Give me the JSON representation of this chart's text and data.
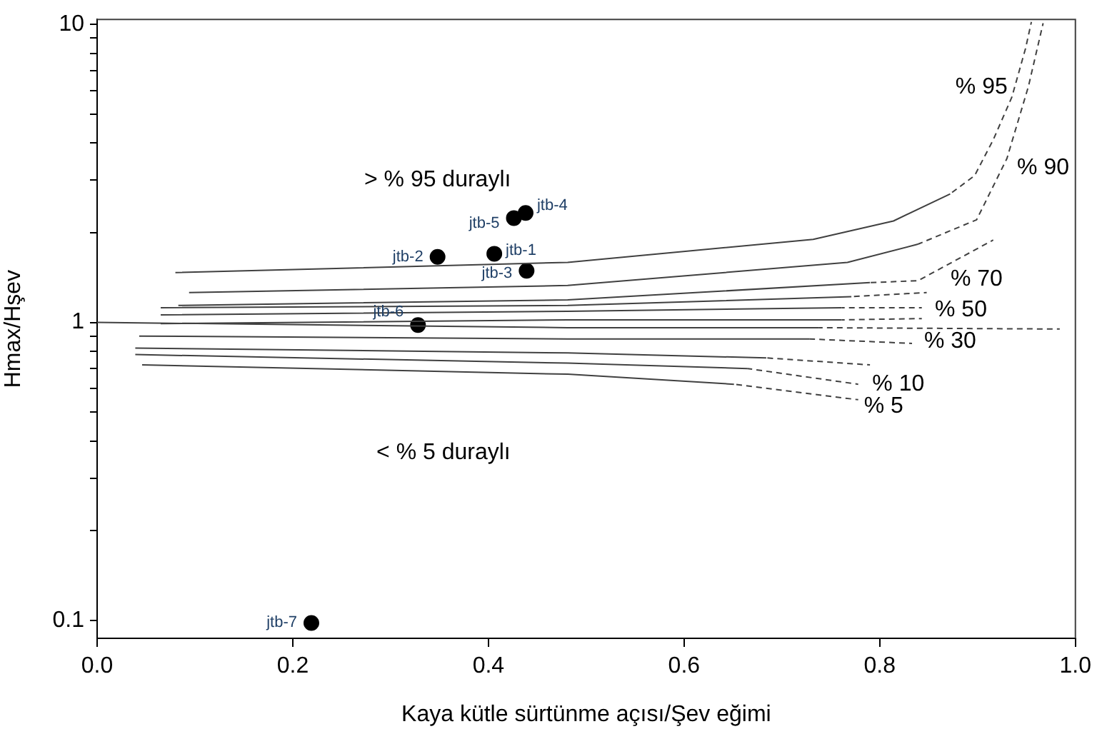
{
  "chart_data": {
    "type": "scatter",
    "xlabel": "Kaya kütle sürtünme açısı/Şev eğimi",
    "ylabel": "Hmax/Hşev",
    "log": "y",
    "grid": false,
    "legend": false,
    "xlim": [
      0,
      1
    ],
    "xticks": [
      {
        "value": 0,
        "label": "0.0"
      },
      0.2,
      0.4,
      0.6,
      0.8,
      {
        "value": 1,
        "label": "1.0"
      }
    ],
    "ylim": [
      0.087,
      10.4
    ],
    "yticks": [
      0.1,
      {
        "value": 0.2,
        "label": null
      },
      {
        "value": 0.3,
        "label": null
      },
      {
        "value": 0.4,
        "label": null
      },
      {
        "value": 0.5,
        "label": null
      },
      {
        "value": 0.6,
        "label": null
      },
      {
        "value": 0.7,
        "label": null
      },
      {
        "value": 0.8,
        "label": null
      },
      {
        "value": 0.9,
        "label": null
      },
      1,
      {
        "value": 2,
        "label": null
      },
      {
        "value": 3,
        "label": null
      },
      {
        "value": 4,
        "label": null
      },
      {
        "value": 5,
        "label": null
      },
      {
        "value": 6,
        "label": null
      },
      {
        "value": 7,
        "label": null
      },
      {
        "value": 8,
        "label": null
      },
      {
        "value": 9,
        "label": null
      },
      10
    ],
    "series": [
      {
        "type": "line",
        "color": "#404040",
        "line_style": "solid",
        "x": [
          0.08,
          0.481,
          0.732,
          0.814,
          0.872
        ],
        "values": [
          1.47,
          1.59,
          1.9,
          2.19,
          2.7
        ]
      },
      {
        "type": "line",
        "color": "#404040",
        "line_style": "dashed",
        "x": [
          0.872,
          0.897,
          0.916,
          0.935,
          0.949,
          0.955
        ],
        "values": [
          2.7,
          3.11,
          4.1,
          5.7,
          8.3,
          10.2
        ]
      },
      {
        "type": "line",
        "color": "#404040",
        "line_style": "solid",
        "x": [
          0.094,
          0.481,
          0.767,
          0.839
        ],
        "values": [
          1.26,
          1.33,
          1.59,
          1.83
        ]
      },
      {
        "type": "line",
        "color": "#404040",
        "line_style": "dashed",
        "x": [
          0.839,
          0.899,
          0.93,
          0.952,
          0.967
        ],
        "values": [
          1.83,
          2.21,
          3.55,
          6.2,
          10.1
        ]
      },
      {
        "type": "line",
        "color": "#404040",
        "line_style": "solid",
        "x": [
          0.083,
          0.481,
          0.79
        ],
        "values": [
          1.14,
          1.19,
          1.36
        ]
      },
      {
        "type": "line",
        "color": "#404040",
        "line_style": "dashed",
        "x": [
          0.79,
          0.839,
          0.916
        ],
        "values": [
          1.36,
          1.38,
          1.89
        ]
      },
      {
        "type": "line",
        "color": "#404040",
        "line_style": "solid",
        "x": [
          0.065,
          0.481,
          0.771
        ],
        "values": [
          1.12,
          1.14,
          1.22
        ]
      },
      {
        "type": "line",
        "color": "#404040",
        "line_style": "dashed",
        "x": [
          0.771,
          0.848
        ],
        "values": [
          1.22,
          1.26
        ]
      },
      {
        "type": "line",
        "color": "#404040",
        "line_style": "solid",
        "x": [
          0.065,
          0.481,
          0.761
        ],
        "values": [
          1.06,
          1.09,
          1.12
        ]
      },
      {
        "type": "line",
        "color": "#404040",
        "line_style": "dashed",
        "x": [
          0.761,
          0.843
        ],
        "values": [
          1.12,
          1.12
        ]
      },
      {
        "type": "line",
        "color": "#404040",
        "line_style": "solid",
        "x": [
          0.065,
          0.481,
          0.761
        ],
        "values": [
          0.99,
          1.02,
          1.02
        ]
      },
      {
        "type": "line",
        "color": "#404040",
        "line_style": "dashed",
        "x": [
          0.761,
          0.843
        ],
        "values": [
          1.02,
          1.03
        ]
      },
      {
        "type": "line",
        "color": "#404040",
        "line_style": "solid",
        "x": [
          0,
          0.481,
          0.738
        ],
        "values": [
          1,
          0.96,
          0.96
        ]
      },
      {
        "type": "line",
        "color": "#404040",
        "line_style": "dashed",
        "x": [
          0.738,
          0.984
        ],
        "values": [
          0.96,
          0.95
        ]
      },
      {
        "type": "line",
        "color": "#404040",
        "line_style": "solid",
        "x": [
          0.043,
          0.481,
          0.728
        ],
        "values": [
          0.9,
          0.88,
          0.88
        ]
      },
      {
        "type": "line",
        "color": "#404040",
        "line_style": "dashed",
        "x": [
          0.728,
          0.833
        ],
        "values": [
          0.88,
          0.85
        ]
      },
      {
        "type": "line",
        "color": "#404040",
        "line_style": "solid",
        "x": [
          0.039,
          0.481,
          0.684
        ],
        "values": [
          0.82,
          0.79,
          0.76
        ]
      },
      {
        "type": "line",
        "color": "#404040",
        "line_style": "dashed",
        "x": [
          0.684,
          0.79
        ],
        "values": [
          0.76,
          0.72
        ]
      },
      {
        "type": "line",
        "color": "#404040",
        "line_style": "solid",
        "x": [
          0.039,
          0.481,
          0.665
        ],
        "values": [
          0.78,
          0.73,
          0.7
        ]
      },
      {
        "type": "line",
        "color": "#404040",
        "line_style": "dashed",
        "x": [
          0.665,
          0.778
        ],
        "values": [
          0.7,
          0.62
        ]
      },
      {
        "type": "line",
        "color": "#404040",
        "line_style": "solid",
        "x": [
          0.046,
          0.481,
          0.651
        ],
        "values": [
          0.72,
          0.67,
          0.62
        ]
      },
      {
        "type": "line",
        "color": "#404040",
        "line_style": "dashed",
        "x": [
          0.651,
          0.778
        ],
        "values": [
          0.62,
          0.55
        ]
      },
      {
        "name": "jtb-1",
        "marker": "circle",
        "color": "#000000",
        "x": [
          0.406
        ],
        "values": [
          1.7
        ]
      },
      {
        "name": "jtb-2",
        "marker": "circle",
        "color": "#000000",
        "x": [
          0.348
        ],
        "values": [
          1.66
        ]
      },
      {
        "name": "jtb-3",
        "marker": "circle",
        "color": "#000000",
        "x": [
          0.439
        ],
        "values": [
          1.49
        ]
      },
      {
        "name": "jtb-4",
        "marker": "circle",
        "color": "#000000",
        "x": [
          0.438
        ],
        "values": [
          2.33
        ]
      },
      {
        "name": "jtb-5",
        "marker": "circle",
        "color": "#000000",
        "x": [
          0.426
        ],
        "values": [
          2.24
        ]
      },
      {
        "name": "jtb-6",
        "marker": "circle",
        "color": "#000000",
        "x": [
          0.328
        ],
        "values": [
          0.98
        ]
      },
      {
        "name": "jtb-7",
        "marker": "circle",
        "color": "#000000",
        "x": [
          0.219
        ],
        "values": [
          0.098
        ]
      }
    ],
    "annotations": [
      "% 95",
      "% 90",
      "% 70",
      "% 50",
      "% 30",
      "% 10",
      "% 5",
      "> % 95 duraylı",
      "< % 5 duraylı"
    ]
  }
}
